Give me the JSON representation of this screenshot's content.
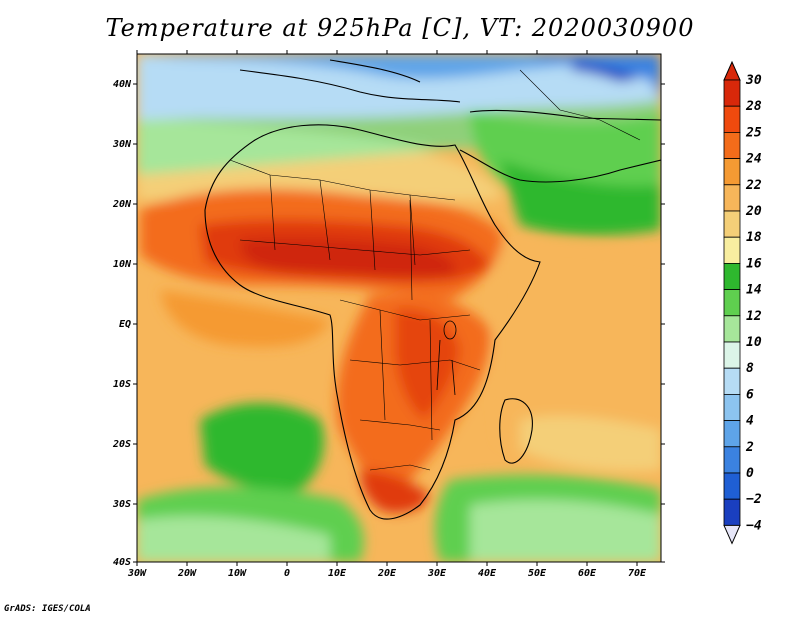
{
  "map": {
    "title": "Temperature at 925hPa [C], VT: 2020030900",
    "variable": "Temperature",
    "level": "925hPa",
    "units": "C",
    "valid_time": "2020030900",
    "lon_ticks": [
      "30W",
      "20W",
      "10W",
      "0",
      "10E",
      "20E",
      "30E",
      "40E",
      "50E",
      "60E",
      "70E"
    ],
    "lat_ticks": [
      "40N",
      "30N",
      "20N",
      "10N",
      "EQ",
      "10S",
      "20S",
      "30S",
      "40S"
    ],
    "credit": "GrADS: IGES/COLA",
    "colorbar": {
      "labels": [
        "30",
        "28",
        "25",
        "24",
        "22",
        "20",
        "18",
        "16",
        "14",
        "12",
        "10",
        "8",
        "6",
        "4",
        "2",
        "0",
        "−2",
        "−4"
      ],
      "colors": [
        "#d8280a",
        "#f04a0e",
        "#f36c1a",
        "#f59a33",
        "#f7b65a",
        "#f4cf78",
        "#f8eea0",
        "#2eb82e",
        "#5fcf4f",
        "#a6e69a",
        "#dcf5e8",
        "#b6dcf5",
        "#8cc4f0",
        "#5ea4e8",
        "#3b82e0",
        "#1f5fd4",
        "#1a3fbf",
        "#10208f"
      ]
    },
    "colors": {
      "hot": "#d8280a",
      "warm": "#f59a33",
      "mild": "#f8eea0",
      "green": "#2eb82e",
      "cool": "#8cc4f0",
      "cold": "#1f5fd4"
    }
  }
}
